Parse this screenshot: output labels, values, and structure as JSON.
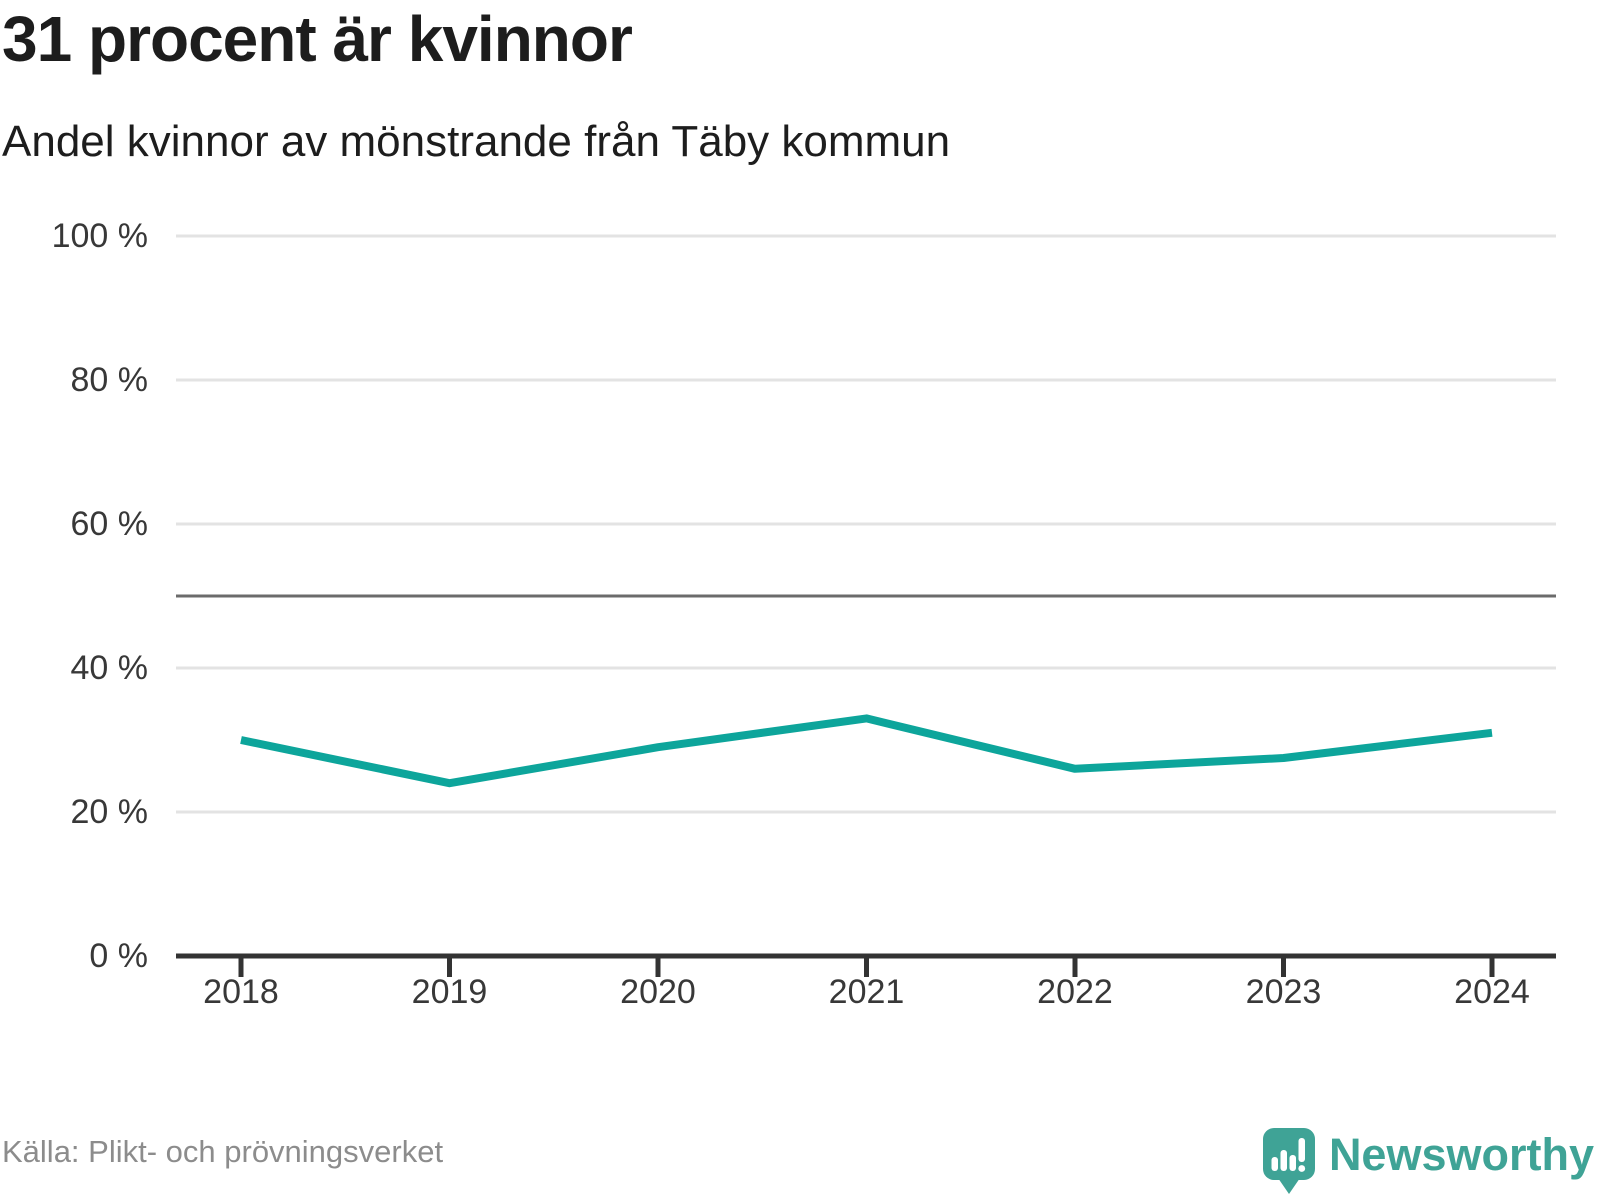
{
  "title": "31 procent är kvinnor",
  "subtitle": "Andel kvinnor av mönstrande från Täby kommun",
  "footer": {
    "source": "Källa: Plikt- och prövningsverket",
    "brand": "Newsworthy",
    "logo_icon": "newsworthy-speech-bubble-bar-chart-icon"
  },
  "colors": {
    "line": "#0da59b",
    "brand_teal": "#3fa396",
    "grid": "#e3e3e3",
    "reference_line": "#6b6b6b",
    "axis": "#333333",
    "tick_text": "#383838",
    "title_text": "#1d1d1d",
    "muted_text": "#8c8c8c"
  },
  "chart_data": {
    "type": "line",
    "title": "31 procent är kvinnor",
    "subtitle": "Andel kvinnor av mönstrande från Täby kommun",
    "categories": [
      "2018",
      "2019",
      "2020",
      "2021",
      "2022",
      "2023",
      "2024"
    ],
    "series": [
      {
        "name": "Andel kvinnor av mönstrande",
        "values": [
          30,
          24,
          29,
          33,
          26,
          27.5,
          31
        ],
        "color": "#0da59b"
      }
    ],
    "xlabel": "",
    "ylabel": "",
    "ylim": [
      0,
      100
    ],
    "yticks": [
      0,
      20,
      40,
      60,
      80,
      100
    ],
    "ytick_labels": [
      "0 %",
      "20 %",
      "40 %",
      "60 %",
      "80 %",
      "100 %"
    ],
    "ytick_format": "{v} %",
    "reference_line": 50,
    "grid": "horizontal",
    "legend": "none",
    "source": "Källa: Plikt- och prövningsverket"
  }
}
